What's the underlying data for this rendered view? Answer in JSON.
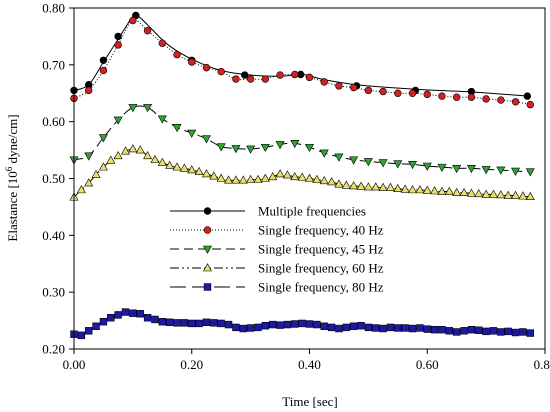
{
  "chart_data": {
    "type": "line",
    "xlabel": "Time [sec]",
    "ylabel_prefix": "Elastance [10",
    "ylabel_sup": "6",
    "ylabel_suffix": " dyne/cm]",
    "xlim": [
      0.0,
      0.8
    ],
    "ylim": [
      0.2,
      0.8
    ],
    "xticks": [
      0.0,
      0.2,
      0.4,
      0.6,
      0.8
    ],
    "xtick_labels": [
      "0.00",
      "0.20",
      "0.40",
      "0.60",
      "0.80"
    ],
    "yticks": [
      0.2,
      0.3,
      0.4,
      0.5,
      0.6,
      0.7,
      0.8
    ],
    "ytick_labels": [
      "0.20",
      "0.30",
      "0.40",
      "0.50",
      "0.60",
      "0.70",
      "0.80"
    ],
    "grid": false,
    "legend_position": "center",
    "series": [
      {
        "name": "Multiple frequencies",
        "color": "#000000",
        "marker": "circle",
        "marker_fill": "#000000",
        "line_style": "solid",
        "line_points": [
          [
            0.0,
            0.655
          ],
          [
            0.025,
            0.665
          ],
          [
            0.05,
            0.705
          ],
          [
            0.075,
            0.745
          ],
          [
            0.09,
            0.77
          ],
          [
            0.1,
            0.785
          ],
          [
            0.11,
            0.785
          ],
          [
            0.13,
            0.765
          ],
          [
            0.16,
            0.735
          ],
          [
            0.2,
            0.71
          ],
          [
            0.25,
            0.69
          ],
          [
            0.3,
            0.682
          ],
          [
            0.35,
            0.68
          ],
          [
            0.39,
            0.683
          ],
          [
            0.42,
            0.675
          ],
          [
            0.48,
            0.665
          ],
          [
            0.58,
            0.657
          ],
          [
            0.68,
            0.652
          ],
          [
            0.77,
            0.645
          ]
        ],
        "marker_points": [
          [
            0.0,
            0.655
          ],
          [
            0.025,
            0.665
          ],
          [
            0.05,
            0.708
          ],
          [
            0.075,
            0.75
          ],
          [
            0.105,
            0.787
          ],
          [
            0.2,
            0.708
          ],
          [
            0.29,
            0.682
          ],
          [
            0.385,
            0.683
          ],
          [
            0.48,
            0.663
          ],
          [
            0.58,
            0.655
          ],
          [
            0.675,
            0.653
          ],
          [
            0.77,
            0.645
          ]
        ]
      },
      {
        "name": "Single frequency, 40 Hz",
        "color": "#000000",
        "marker": "circle",
        "marker_fill": "#d61f1f",
        "line_style": "dotted",
        "points": [
          [
            0.0,
            0.641
          ],
          [
            0.025,
            0.655
          ],
          [
            0.05,
            0.69
          ],
          [
            0.075,
            0.735
          ],
          [
            0.1,
            0.778
          ],
          [
            0.125,
            0.76
          ],
          [
            0.15,
            0.738
          ],
          [
            0.175,
            0.718
          ],
          [
            0.2,
            0.705
          ],
          [
            0.225,
            0.695
          ],
          [
            0.25,
            0.688
          ],
          [
            0.275,
            0.675
          ],
          [
            0.3,
            0.675
          ],
          [
            0.325,
            0.675
          ],
          [
            0.35,
            0.682
          ],
          [
            0.375,
            0.683
          ],
          [
            0.4,
            0.678
          ],
          [
            0.425,
            0.67
          ],
          [
            0.45,
            0.663
          ],
          [
            0.475,
            0.66
          ],
          [
            0.5,
            0.655
          ],
          [
            0.525,
            0.653
          ],
          [
            0.55,
            0.65
          ],
          [
            0.575,
            0.65
          ],
          [
            0.6,
            0.648
          ],
          [
            0.625,
            0.645
          ],
          [
            0.65,
            0.643
          ],
          [
            0.675,
            0.643
          ],
          [
            0.7,
            0.64
          ],
          [
            0.725,
            0.638
          ],
          [
            0.75,
            0.635
          ],
          [
            0.775,
            0.63
          ]
        ]
      },
      {
        "name": "Single frequency, 45 Hz",
        "color": "#000000",
        "marker": "triangle-down",
        "marker_fill": "#2ea52e",
        "line_style": "dashed",
        "points": [
          [
            0.0,
            0.533
          ],
          [
            0.025,
            0.54
          ],
          [
            0.05,
            0.572
          ],
          [
            0.075,
            0.603
          ],
          [
            0.1,
            0.625
          ],
          [
            0.125,
            0.625
          ],
          [
            0.15,
            0.605
          ],
          [
            0.175,
            0.59
          ],
          [
            0.2,
            0.58
          ],
          [
            0.225,
            0.57
          ],
          [
            0.25,
            0.556
          ],
          [
            0.275,
            0.553
          ],
          [
            0.3,
            0.552
          ],
          [
            0.325,
            0.555
          ],
          [
            0.35,
            0.56
          ],
          [
            0.375,
            0.562
          ],
          [
            0.4,
            0.555
          ],
          [
            0.425,
            0.545
          ],
          [
            0.45,
            0.538
          ],
          [
            0.475,
            0.533
          ],
          [
            0.5,
            0.53
          ],
          [
            0.525,
            0.528
          ],
          [
            0.55,
            0.526
          ],
          [
            0.575,
            0.525
          ],
          [
            0.6,
            0.522
          ],
          [
            0.625,
            0.52
          ],
          [
            0.65,
            0.518
          ],
          [
            0.675,
            0.518
          ],
          [
            0.7,
            0.516
          ],
          [
            0.725,
            0.515
          ],
          [
            0.75,
            0.513
          ],
          [
            0.775,
            0.512
          ]
        ]
      },
      {
        "name": "Single frequency, 60 Hz",
        "color": "#000000",
        "marker": "triangle-up",
        "marker_fill": "#e9e066",
        "line_style": "dash-dot-dot",
        "points": [
          [
            0.0,
            0.467
          ],
          [
            0.0125,
            0.48
          ],
          [
            0.025,
            0.492
          ],
          [
            0.0375,
            0.507
          ],
          [
            0.05,
            0.52
          ],
          [
            0.0625,
            0.532
          ],
          [
            0.075,
            0.54
          ],
          [
            0.0875,
            0.548
          ],
          [
            0.1,
            0.552
          ],
          [
            0.1125,
            0.55
          ],
          [
            0.125,
            0.54
          ],
          [
            0.1375,
            0.533
          ],
          [
            0.15,
            0.528
          ],
          [
            0.1625,
            0.523
          ],
          [
            0.175,
            0.52
          ],
          [
            0.1875,
            0.518
          ],
          [
            0.2,
            0.515
          ],
          [
            0.2125,
            0.512
          ],
          [
            0.225,
            0.508
          ],
          [
            0.2375,
            0.504
          ],
          [
            0.25,
            0.5
          ],
          [
            0.2625,
            0.497
          ],
          [
            0.275,
            0.497
          ],
          [
            0.2875,
            0.497
          ],
          [
            0.3,
            0.498
          ],
          [
            0.3125,
            0.498
          ],
          [
            0.325,
            0.5
          ],
          [
            0.3375,
            0.503
          ],
          [
            0.35,
            0.508
          ],
          [
            0.3625,
            0.506
          ],
          [
            0.375,
            0.503
          ],
          [
            0.3875,
            0.502
          ],
          [
            0.4,
            0.5
          ],
          [
            0.4125,
            0.498
          ],
          [
            0.425,
            0.496
          ],
          [
            0.4375,
            0.494
          ],
          [
            0.45,
            0.49
          ],
          [
            0.4625,
            0.488
          ],
          [
            0.475,
            0.487
          ],
          [
            0.4875,
            0.486
          ],
          [
            0.5,
            0.485
          ],
          [
            0.5125,
            0.485
          ],
          [
            0.525,
            0.484
          ],
          [
            0.5375,
            0.484
          ],
          [
            0.55,
            0.482
          ],
          [
            0.5625,
            0.481
          ],
          [
            0.575,
            0.48
          ],
          [
            0.5875,
            0.48
          ],
          [
            0.6,
            0.479
          ],
          [
            0.6125,
            0.478
          ],
          [
            0.625,
            0.477
          ],
          [
            0.6375,
            0.477
          ],
          [
            0.65,
            0.475
          ],
          [
            0.6625,
            0.475
          ],
          [
            0.675,
            0.474
          ],
          [
            0.6875,
            0.473
          ],
          [
            0.7,
            0.472
          ],
          [
            0.7125,
            0.472
          ],
          [
            0.725,
            0.471
          ],
          [
            0.7375,
            0.47
          ],
          [
            0.75,
            0.47
          ],
          [
            0.7625,
            0.469
          ],
          [
            0.775,
            0.468
          ]
        ]
      },
      {
        "name": "Single frequency, 80 Hz",
        "color": "#000000",
        "marker": "square",
        "marker_fill": "#1a1aa6",
        "line_style": "long-dash",
        "points": [
          [
            0.0,
            0.226
          ],
          [
            0.0125,
            0.224
          ],
          [
            0.025,
            0.232
          ],
          [
            0.0375,
            0.24
          ],
          [
            0.05,
            0.248
          ],
          [
            0.0625,
            0.255
          ],
          [
            0.075,
            0.26
          ],
          [
            0.0875,
            0.265
          ],
          [
            0.1,
            0.263
          ],
          [
            0.1125,
            0.262
          ],
          [
            0.125,
            0.255
          ],
          [
            0.1375,
            0.252
          ],
          [
            0.15,
            0.248
          ],
          [
            0.1625,
            0.247
          ],
          [
            0.175,
            0.246
          ],
          [
            0.1875,
            0.246
          ],
          [
            0.2,
            0.245
          ],
          [
            0.2125,
            0.245
          ],
          [
            0.225,
            0.247
          ],
          [
            0.2375,
            0.246
          ],
          [
            0.25,
            0.245
          ],
          [
            0.2625,
            0.243
          ],
          [
            0.275,
            0.238
          ],
          [
            0.2875,
            0.236
          ],
          [
            0.3,
            0.237
          ],
          [
            0.3125,
            0.238
          ],
          [
            0.325,
            0.241
          ],
          [
            0.3375,
            0.243
          ],
          [
            0.35,
            0.242
          ],
          [
            0.3625,
            0.243
          ],
          [
            0.375,
            0.244
          ],
          [
            0.3875,
            0.245
          ],
          [
            0.4,
            0.244
          ],
          [
            0.4125,
            0.243
          ],
          [
            0.425,
            0.24
          ],
          [
            0.4375,
            0.238
          ],
          [
            0.45,
            0.236
          ],
          [
            0.4625,
            0.238
          ],
          [
            0.475,
            0.24
          ],
          [
            0.4875,
            0.241
          ],
          [
            0.5,
            0.238
          ],
          [
            0.5125,
            0.237
          ],
          [
            0.525,
            0.236
          ],
          [
            0.5375,
            0.238
          ],
          [
            0.55,
            0.237
          ],
          [
            0.5625,
            0.237
          ],
          [
            0.575,
            0.236
          ],
          [
            0.5875,
            0.237
          ],
          [
            0.6,
            0.235
          ],
          [
            0.6125,
            0.234
          ],
          [
            0.625,
            0.234
          ],
          [
            0.6375,
            0.232
          ],
          [
            0.65,
            0.23
          ],
          [
            0.6625,
            0.232
          ],
          [
            0.675,
            0.234
          ],
          [
            0.6875,
            0.233
          ],
          [
            0.7,
            0.231
          ],
          [
            0.7125,
            0.232
          ],
          [
            0.725,
            0.23
          ],
          [
            0.7375,
            0.231
          ],
          [
            0.75,
            0.229
          ],
          [
            0.7625,
            0.23
          ],
          [
            0.775,
            0.228
          ]
        ]
      }
    ]
  }
}
